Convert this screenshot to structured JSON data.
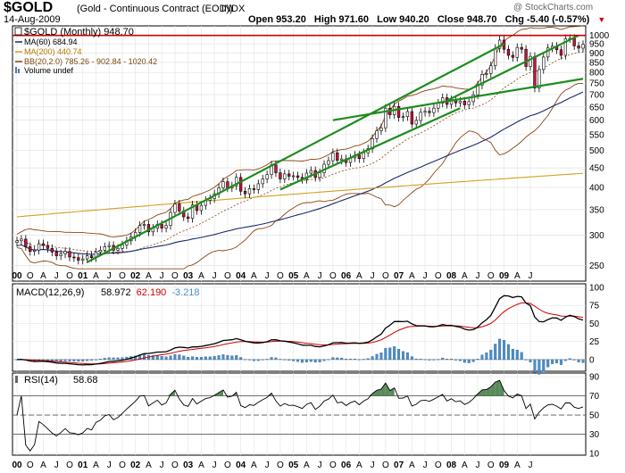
{
  "header": {
    "symbol": "$GOLD",
    "name": "(Gold - Continuous Contract (EOD))",
    "exchange": "INDX",
    "watermark": "@ StockCharts.com",
    "date": "14-Aug-2009",
    "open": "Open 953.20",
    "high": "High 971.60",
    "low": "Low 940.20",
    "close": "Close 948.70",
    "chg": "Chg -5.40 (-0.57%)",
    "chg_arrow": "▼"
  },
  "legend": {
    "main": "$GOLD (Monthly) 948.70",
    "ma60": "MA(60) 684.94",
    "ma200": "MA(200) 440.74",
    "bb": "BB(20,2.0) 785.26 - 902.84 - 1020.42",
    "volume": "Volume undef"
  },
  "macd_legend": {
    "label": "MACD(12,26,9)",
    "v1": "58.972",
    "v2": "62.190",
    "v3": "-3.218"
  },
  "rsi_legend": {
    "label": "RSI(14)",
    "v1": "58.68"
  },
  "colors": {
    "up": "#ffffff",
    "down": "#d0103a",
    "ma60": "#1a2a6c",
    "ma200": "#d4a020",
    "bb": "#8b4513",
    "trend": "#1e8c1e",
    "resistance": "#cc0000",
    "macd": "#000000",
    "signal": "#cc0000",
    "hist": "#4a8fc8"
  },
  "chart_data": [
    {
      "type": "candlestick",
      "title": "$GOLD (Monthly) 948.70",
      "scale": "log",
      "ylim": [
        240,
        1020
      ],
      "y_ticks": [
        250,
        300,
        350,
        400,
        450,
        500,
        550,
        600,
        650,
        700,
        750,
        800,
        850,
        900,
        950,
        1000
      ],
      "x_labels": [
        "00",
        "O",
        "A",
        "J",
        "O",
        "01",
        "A",
        "J",
        "O",
        "02",
        "A",
        "J",
        "O",
        "03",
        "A",
        "J",
        "O",
        "04",
        "A",
        "J",
        "O",
        "05",
        "A",
        "J",
        "O",
        "06",
        "A",
        "J",
        "O",
        "07",
        "A",
        "J",
        "O",
        "08",
        "A",
        "J",
        "O",
        "09",
        "A",
        "J"
      ],
      "x_start": "2000-01",
      "close": [
        290,
        293,
        280,
        272,
        274,
        285,
        282,
        277,
        271,
        265,
        268,
        272,
        263,
        262,
        258,
        260,
        265,
        262,
        271,
        274,
        280,
        282,
        274,
        277,
        283,
        290,
        297,
        305,
        318,
        320,
        306,
        313,
        320,
        313,
        318,
        344,
        362,
        347,
        335,
        332,
        360,
        348,
        359,
        370,
        374,
        385,
        399,
        414,
        399,
        404,
        425,
        391,
        385,
        397,
        395,
        409,
        421,
        432,
        458,
        437,
        421,
        434,
        428,
        429,
        425,
        420,
        436,
        443,
        425,
        437,
        460,
        470,
        493,
        471,
        475,
        465,
        478,
        486,
        476,
        493,
        505,
        537,
        563,
        573,
        645,
        620,
        652,
        610,
        613,
        632,
        586,
        599,
        629,
        633,
        628,
        645,
        665,
        687,
        660,
        679,
        666,
        673,
        658,
        671,
        699,
        742,
        791,
        795,
        833,
        925,
        972,
        920,
        887,
        876,
        930,
        920,
        829,
        881,
        728,
        814,
        878,
        927,
        937,
        917,
        887,
        981,
        982,
        939,
        926,
        947
      ],
      "ohlc_summary": {
        "open": 953.2,
        "high": 971.6,
        "low": 940.2,
        "close": 948.7
      }
    },
    {
      "type": "line",
      "title": "MACD(12,26,9)",
      "ylim": [
        -10,
        100
      ],
      "y_ticks": [
        0,
        25,
        50,
        75,
        100
      ],
      "series": [
        {
          "name": "58.972"
        },
        {
          "name": "62.190"
        },
        {
          "name": "-3.218"
        }
      ]
    },
    {
      "type": "line",
      "title": "RSI(14)",
      "ylim": [
        10,
        92
      ],
      "y_ticks": [
        10,
        30,
        50,
        70,
        90
      ],
      "series": [
        {
          "name": "58.68"
        }
      ]
    }
  ]
}
